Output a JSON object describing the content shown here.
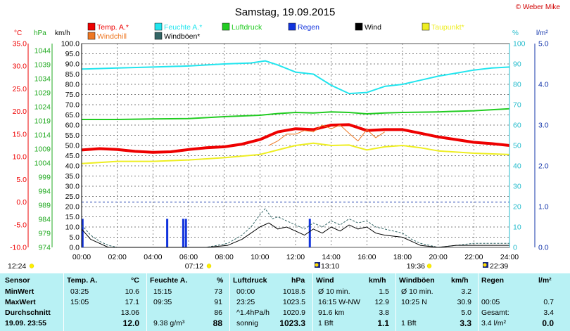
{
  "title": "Samstag, 19.09.2015",
  "copyright": "© Weber Mike",
  "colors": {
    "temp": "#ee0000",
    "windchill": "#ee7722",
    "humidity": "#22e5ee",
    "pressure": "#22cc22",
    "windgust": "#336666",
    "rain": "#1133dd",
    "wind": "#000000",
    "dewpoint": "#eeee22",
    "grid": "#555555",
    "axis_temp": "#ee0000",
    "axis_hpa": "#22aa22",
    "axis_kmh": "#000000",
    "axis_pct": "#22bbcc",
    "axis_lm2": "#1133aa",
    "stats_bg": "#b8f1f4"
  },
  "axis_units": {
    "c": "°C",
    "hpa": "hPa",
    "kmh": "km/h",
    "pct": "%",
    "lm2": "l/m²"
  },
  "legend": [
    {
      "label": "Temp. A.*",
      "key": "temp"
    },
    {
      "label": "Feuchte A.*",
      "key": "humidity"
    },
    {
      "label": "Luftdruck",
      "key": "pressure"
    },
    {
      "label": "Regen",
      "key": "rain"
    },
    {
      "label": "Wind",
      "key": "wind"
    },
    {
      "label": "Taupunkt*",
      "key": "dewpoint"
    },
    {
      "label": "Windchill",
      "key": "windchill"
    },
    {
      "label": "Windböen*",
      "key": "windgust"
    }
  ],
  "sun_events": {
    "sunrise_civil": "12:24",
    "sunrise": "07:12",
    "moonrise": "13:10",
    "sunset": "19:36",
    "moonset": "22:39"
  },
  "chart_data": {
    "type": "line",
    "title": "Samstag, 19.09.2015",
    "x_ticks": [
      "00:00",
      "02:00",
      "04:00",
      "06:00",
      "08:00",
      "10:00",
      "12:00",
      "14:00",
      "16:00",
      "18:00",
      "20:00",
      "22:00",
      "24:00"
    ],
    "xlim": [
      0,
      24
    ],
    "y_axes": {
      "temp_c": {
        "range": [
          -10,
          35
        ],
        "ticks": [
          "35.0",
          "30.0",
          "25.0",
          "20.0",
          "15.0",
          "10.0",
          "5.0",
          "0.0",
          "-5.0",
          "-10.0"
        ]
      },
      "pressure_hpa": {
        "range": [
          974,
          1046.5
        ],
        "ticks": [
          "1044",
          "1039",
          "1034",
          "1029",
          "1024",
          "1019",
          "1014",
          "1009",
          "1004",
          "999",
          "994",
          "989",
          "984",
          "979",
          "974"
        ]
      },
      "wind_kmh": {
        "range": [
          0,
          100
        ],
        "ticks": [
          "100.0",
          "95.0",
          "90.0",
          "85.0",
          "80.0",
          "75.0",
          "70.0",
          "65.0",
          "60.0",
          "55.0",
          "50.0",
          "45.0",
          "40.0",
          "35.0",
          "30.0",
          "25.0",
          "20.0",
          "15.0",
          "10.0",
          "5.0",
          "0.0"
        ]
      },
      "humidity_pct": {
        "range": [
          0,
          100
        ],
        "ticks": [
          "100",
          "90",
          "80",
          "70",
          "60",
          "50",
          "40",
          "30",
          "20",
          "10",
          "0"
        ]
      },
      "rain_lm2": {
        "range": [
          0,
          5
        ],
        "ticks": [
          "5.0",
          "4.0",
          "3.0",
          "2.0",
          "1.0",
          "0.0"
        ]
      }
    },
    "grid": true,
    "series": [
      {
        "name": "Temp. A.*",
        "axis": "temp_c",
        "key": "temp",
        "width": 4,
        "points": [
          [
            0,
            11.5
          ],
          [
            1,
            11.8
          ],
          [
            2,
            11.6
          ],
          [
            3,
            11.2
          ],
          [
            4,
            11.0
          ],
          [
            5,
            11.1
          ],
          [
            6,
            11.6
          ],
          [
            7,
            12.0
          ],
          [
            8,
            12.2
          ],
          [
            9,
            12.8
          ],
          [
            10,
            13.8
          ],
          [
            11,
            15.5
          ],
          [
            12,
            16.2
          ],
          [
            13,
            16.0
          ],
          [
            14,
            17.0
          ],
          [
            15,
            17.1
          ],
          [
            16,
            15.8
          ],
          [
            17,
            16.0
          ],
          [
            18,
            16.0
          ],
          [
            19,
            15.2
          ],
          [
            20,
            14.4
          ],
          [
            21,
            13.8
          ],
          [
            22,
            13.2
          ],
          [
            23,
            12.9
          ],
          [
            24,
            12.5
          ]
        ]
      },
      {
        "name": "Windchill",
        "axis": "temp_c",
        "key": "windchill",
        "width": 1,
        "points": [
          [
            10.5,
            12.5
          ],
          [
            11,
            13.5
          ],
          [
            11.5,
            15.0
          ],
          [
            12,
            15.0
          ],
          [
            12.5,
            15.8
          ],
          [
            13,
            15.5
          ],
          [
            13.5,
            17.0
          ],
          [
            14,
            16.2
          ],
          [
            14.5,
            17.0
          ],
          [
            15,
            15.2
          ],
          [
            15.5,
            13.5
          ],
          [
            16,
            16.0
          ],
          [
            16.5,
            14.2
          ],
          [
            17,
            15.5
          ]
        ]
      },
      {
        "name": "Feuchte A.*",
        "axis": "humidity_pct",
        "key": "humidity",
        "width": 2,
        "points": [
          [
            0,
            87.5
          ],
          [
            2,
            88.0
          ],
          [
            4,
            88.5
          ],
          [
            6,
            89.0
          ],
          [
            8,
            90.0
          ],
          [
            9.5,
            90.5
          ],
          [
            10.3,
            91.5
          ],
          [
            11,
            89.5
          ],
          [
            12,
            86.0
          ],
          [
            13,
            85.0
          ],
          [
            14,
            79.5
          ],
          [
            15,
            75.5
          ],
          [
            16,
            76.0
          ],
          [
            17,
            79.0
          ],
          [
            18,
            80.0
          ],
          [
            19,
            82.0
          ],
          [
            20,
            84.0
          ],
          [
            21,
            85.5
          ],
          [
            22,
            87.0
          ],
          [
            23,
            88.0
          ],
          [
            24,
            88.5
          ]
        ]
      },
      {
        "name": "Luftdruck",
        "axis": "pressure_hpa",
        "key": "pressure",
        "width": 2,
        "points": [
          [
            0,
            1019.5
          ],
          [
            2,
            1019.5
          ],
          [
            4,
            1019.7
          ],
          [
            6,
            1019.8
          ],
          [
            8,
            1020.5
          ],
          [
            10,
            1021.0
          ],
          [
            11,
            1021.6
          ],
          [
            12,
            1022.0
          ],
          [
            13,
            1021.8
          ],
          [
            14,
            1022.2
          ],
          [
            15,
            1022.0
          ],
          [
            16,
            1021.5
          ],
          [
            17,
            1021.8
          ],
          [
            18,
            1022.0
          ],
          [
            20,
            1022.2
          ],
          [
            22,
            1022.6
          ],
          [
            24,
            1023.3
          ]
        ]
      },
      {
        "name": "Taupunkt*",
        "axis": "temp_c",
        "key": "dewpoint",
        "width": 2,
        "points": [
          [
            0,
            8.5
          ],
          [
            2,
            9.0
          ],
          [
            4,
            9.0
          ],
          [
            6,
            9.3
          ],
          [
            8,
            9.8
          ],
          [
            10,
            10.5
          ],
          [
            11,
            11.5
          ],
          [
            12,
            12.5
          ],
          [
            13,
            13.0
          ],
          [
            14,
            12.5
          ],
          [
            15,
            12.6
          ],
          [
            16,
            11.5
          ],
          [
            17,
            12.2
          ],
          [
            18,
            12.5
          ],
          [
            19,
            12.0
          ],
          [
            20,
            11.3
          ],
          [
            22,
            10.8
          ],
          [
            24,
            10.5
          ]
        ]
      },
      {
        "name": "Windböen*",
        "axis": "wind_kmh",
        "key": "windgust",
        "width": 1,
        "dashed": true,
        "points": [
          [
            0,
            11
          ],
          [
            0.5,
            6
          ],
          [
            1,
            3
          ],
          [
            1.5,
            1
          ],
          [
            2,
            0
          ],
          [
            7,
            0
          ],
          [
            8.2,
            2
          ],
          [
            9,
            6
          ],
          [
            9.5,
            10
          ],
          [
            10,
            16
          ],
          [
            10.3,
            19
          ],
          [
            10.7,
            14
          ],
          [
            11,
            15
          ],
          [
            11.5,
            13
          ],
          [
            12,
            11
          ],
          [
            12.5,
            9
          ],
          [
            13,
            12
          ],
          [
            13.5,
            10
          ],
          [
            14,
            13
          ],
          [
            14.5,
            11
          ],
          [
            15,
            14
          ],
          [
            15.5,
            12
          ],
          [
            16,
            13
          ],
          [
            16.5,
            10
          ],
          [
            17,
            9
          ],
          [
            18,
            7
          ],
          [
            18.5,
            4
          ],
          [
            19,
            2
          ],
          [
            20,
            0
          ],
          [
            21,
            1
          ],
          [
            22,
            2
          ],
          [
            23,
            2
          ],
          [
            24,
            2
          ]
        ]
      },
      {
        "name": "Wind",
        "axis": "wind_kmh",
        "key": "wind",
        "width": 1,
        "points": [
          [
            0,
            9
          ],
          [
            0.5,
            4
          ],
          [
            1,
            2
          ],
          [
            1.5,
            0
          ],
          [
            7,
            0
          ],
          [
            8.2,
            1
          ],
          [
            9,
            4
          ],
          [
            9.5,
            7
          ],
          [
            10,
            10
          ],
          [
            10.5,
            12
          ],
          [
            11,
            9
          ],
          [
            11.5,
            10
          ],
          [
            12,
            8
          ],
          [
            12.5,
            6
          ],
          [
            13,
            9
          ],
          [
            13.5,
            7
          ],
          [
            14,
            10
          ],
          [
            14.5,
            8
          ],
          [
            15,
            11
          ],
          [
            15.5,
            9
          ],
          [
            16,
            10
          ],
          [
            16.5,
            7
          ],
          [
            17,
            6
          ],
          [
            18,
            5
          ],
          [
            18.5,
            3
          ],
          [
            19,
            1
          ],
          [
            20,
            0
          ],
          [
            21,
            1
          ],
          [
            22,
            1
          ],
          [
            23,
            1
          ],
          [
            24,
            1
          ]
        ]
      }
    ],
    "rain_bars": [
      {
        "x": 0.05,
        "value": 0.7
      },
      {
        "x": 4.8,
        "value": 0.7
      },
      {
        "x": 5.7,
        "value": 0.7
      },
      {
        "x": 5.85,
        "value": 0.7
      },
      {
        "x": 12.8,
        "value": 0.7
      }
    ],
    "zero_line_c": 0.0
  },
  "stats": {
    "headers": {
      "sensor": "Sensor",
      "temp": "Temp. A.",
      "temp_unit": "°C",
      "hum": "Feuchte A.",
      "hum_unit": "%",
      "press": "Luftdruck",
      "press_unit": "hPa",
      "wind": "Wind",
      "wind_unit": "km/h",
      "gust": "Windböen",
      "gust_unit": "km/h",
      "rain": "Regen",
      "rain_unit": "l/m²"
    },
    "rows": [
      {
        "label": "MinWert",
        "temp_time": "03:25",
        "temp_val": "10.6",
        "hum_time": "15:15",
        "hum_val": "73",
        "press_time": "00:00",
        "press_val": "1018.5",
        "wind_desc": "Ø 10 min.",
        "wind_val": "1.5",
        "gust_desc": "Ø 10 min.",
        "gust_val": "3.2",
        "rain_desc": "",
        "rain_val": ""
      },
      {
        "label": "MaxWert",
        "temp_time": "15:05",
        "temp_val": "17.1",
        "hum_time": "09:35",
        "hum_val": "91",
        "press_time": "23:25",
        "press_val": "1023.5",
        "wind_desc": "16:15   W-NW",
        "wind_val": "12.9",
        "gust_desc": "10:25          N",
        "gust_val": "30.9",
        "rain_desc": "00:05",
        "rain_val": "0.7"
      },
      {
        "label": "Durchschnitt",
        "temp_time": "",
        "temp_val": "13.06",
        "hum_time": "",
        "hum_val": "86",
        "press_time": "^1.4hPa/h",
        "press_val": "1020.9",
        "wind_desc": "91.6 km",
        "wind_val": "3.8",
        "gust_desc": "",
        "gust_val": "5.0",
        "rain_desc": "Gesamt:",
        "rain_val": "3.4"
      },
      {
        "label": "19.09. 23:55",
        "temp_time": "",
        "temp_val": "12.0",
        "hum_time": "9.38 g/m³",
        "hum_val": "88",
        "press_time": "sonnig",
        "press_val": "1023.3",
        "wind_desc": "1 Bft",
        "wind_val": "1.1",
        "gust_desc": "1 Bft",
        "gust_val": "3.3",
        "rain_desc": "3.4 l/m²",
        "rain_val": "0.0"
      }
    ]
  }
}
